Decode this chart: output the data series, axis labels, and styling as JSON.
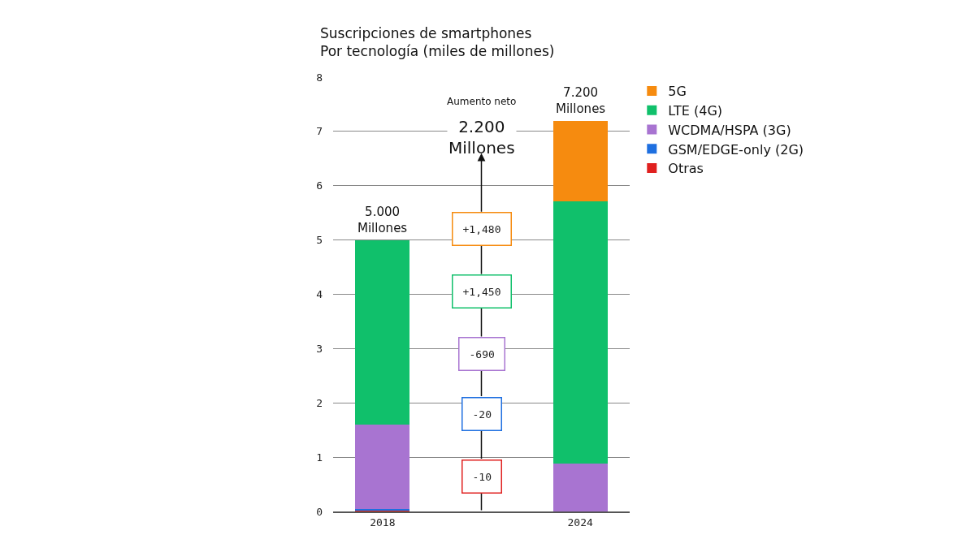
{
  "chart_data": {
    "type": "bar",
    "stacked": true,
    "title": "Suscripciones de smartphones",
    "subtitle": "Por tecnología (miles de millones)",
    "categories": [
      "2018",
      null,
      "2024"
    ],
    "series": [
      {
        "name": "Otras",
        "color": "#e0201f",
        "values": [
          0.01,
          null,
          0
        ]
      },
      {
        "name": "GSM/EDGE-only (2G)",
        "color": "#1e6fe0",
        "values": [
          0.04,
          null,
          0
        ]
      },
      {
        "name": "WCDMA/HSPA (3G)",
        "color": "#a874d1",
        "values": [
          1.55,
          null,
          0.88
        ]
      },
      {
        "name": "LTE (4G)",
        "color": "#10c06b",
        "values": [
          3.4,
          null,
          4.83
        ]
      },
      {
        "name": "5G",
        "color": "#f68b0f",
        "values": [
          0,
          null,
          1.49
        ]
      }
    ],
    "totals": [
      "5.000\nMillones",
      null,
      "7.200\nMillones"
    ],
    "annotations": [
      "Aumento neto",
      "2.200\nMillones",
      "+1,480",
      "+1,450",
      "-690",
      "-20",
      "-10"
    ],
    "ylim": [
      0,
      8
    ],
    "yticks": [
      0,
      1,
      2,
      3,
      4,
      5,
      6,
      7,
      8
    ],
    "grid": "y",
    "legend": "top right"
  }
}
